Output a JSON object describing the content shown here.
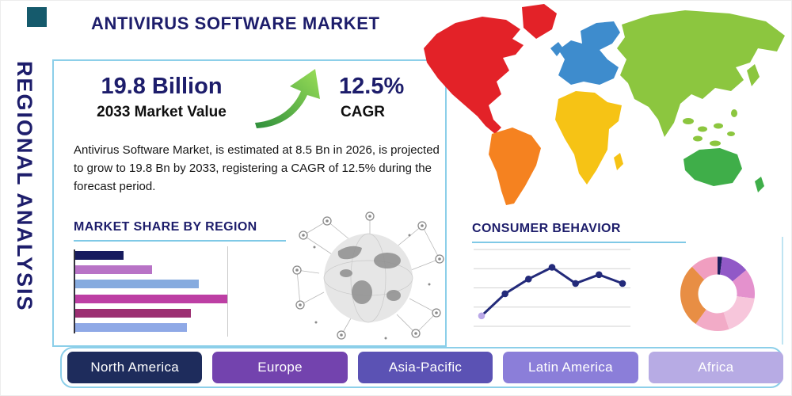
{
  "page": {
    "title": "ANTIVIRUS SOFTWARE MARKET",
    "side_label": "REGIONAL ANALYSIS"
  },
  "stats": {
    "market_value": "19.8 Billion",
    "market_value_caption": "2033 Market Value",
    "cagr_value": "12.5%",
    "cagr_caption": "CAGR",
    "description": "Antivirus Software Market, is estimated at 8.5 Bn in 2026, is projected to grow to 19.8 Bn by 2033, registering a CAGR of 12.5% during the forecast period."
  },
  "sections": {
    "market_share_title": "MARKET SHARE BY REGION",
    "consumer_behavior_title": "CONSUMER BEHAVIOR"
  },
  "region_buttons": [
    {
      "label": "North America",
      "color": "#1e2c5c"
    },
    {
      "label": "Europe",
      "color": "#7343ae"
    },
    {
      "label": "Asia-Pacific",
      "color": "#5b52b4"
    },
    {
      "label": "Latin America",
      "color": "#8b7ed9"
    },
    {
      "label": "Africa",
      "color": "#b7abe4"
    }
  ],
  "map_colors": {
    "north_america": "#e32228",
    "greenland": "#e32228",
    "south_america": "#f58220",
    "europe": "#3e8ccd",
    "africa": "#f6c315",
    "asia": "#8cc63f",
    "australia": "#3fae49"
  },
  "accent_colors": {
    "navy": "#1d1d6b",
    "panel_border": "#8ccfe9",
    "underline": "#7fc9e6",
    "logo_teal": "#155a6c",
    "arrow_green_dark": "#2f8f3c",
    "arrow_green_light": "#9ade57"
  },
  "chart_data": [
    {
      "id": "market-share-bars",
      "type": "bar",
      "orientation": "horizontal",
      "title": "MARKET SHARE BY REGION",
      "values": [
        25,
        40,
        64,
        79,
        60,
        58
      ],
      "colors": [
        "#171b5e",
        "#b873c6",
        "#86abdf",
        "#bd3fa4",
        "#9c2f72",
        "#8fa9e6"
      ],
      "xlim": [
        0,
        100
      ],
      "grid": true
    },
    {
      "id": "consumer-behavior-line",
      "type": "line",
      "title": "CONSUMER BEHAVIOR",
      "values": [
        12,
        42,
        62,
        78,
        56,
        68,
        56
      ],
      "ylim": [
        0,
        100
      ],
      "line_color": "#232a7a",
      "marker_color": "#232a7a",
      "first_marker_color": "#baa8e8",
      "grid": true
    },
    {
      "id": "regional-share-donut",
      "type": "pie",
      "donut": true,
      "segments": [
        {
          "value": 2,
          "color": "#1b1f5e"
        },
        {
          "value": 12,
          "color": "#9159c7"
        },
        {
          "value": 13,
          "color": "#e491cd"
        },
        {
          "value": 18,
          "color": "#f7c6db"
        },
        {
          "value": 15,
          "color": "#f2abc7"
        },
        {
          "value": 28,
          "color": "#e88e44"
        },
        {
          "value": 12,
          "color": "#f09ec0"
        }
      ]
    }
  ]
}
